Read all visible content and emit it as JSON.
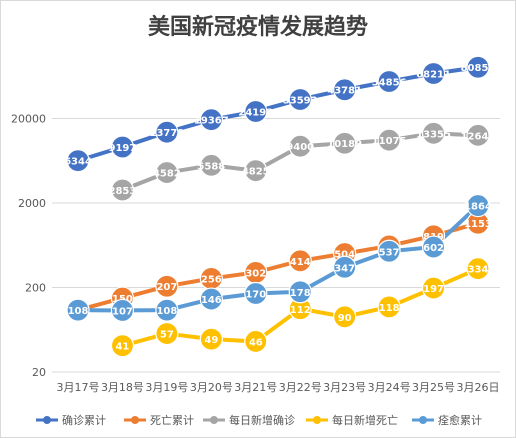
{
  "chart_data": {
    "type": "line",
    "title": "美国新冠疫情发展趋势",
    "xlabel": "",
    "ylabel": "",
    "y_scale": "log",
    "ylim": [
      20,
      200000
    ],
    "y_ticks": [
      "20",
      "200",
      "2000",
      "20000"
    ],
    "grid": true,
    "legend_position": "bottom",
    "categories": [
      "3月17号",
      "3月18号",
      "3月19号",
      "3月20号",
      "3月21号",
      "3月22号",
      "3月23号",
      "3月24号",
      "3月25号",
      "3月26日"
    ],
    "series": [
      {
        "name": "确诊累计",
        "color": "#4472C4",
        "values": [
          6344,
          9197,
          13779,
          19367,
          24192,
          33592,
          43781,
          54856,
          68211,
          80854
        ],
        "labels": [
          "6344",
          "9197",
          "13779",
          "19367",
          "24192",
          "33592",
          "43781",
          "54856",
          "68211",
          "80854"
        ]
      },
      {
        "name": "死亡累计",
        "color": "#ED7D31",
        "values": [
          108,
          150,
          207,
          256,
          302,
          414,
          504,
          622,
          819,
          1153
        ],
        "labels": [
          "108",
          "150",
          "207",
          "256",
          "302",
          "414",
          "504",
          "622",
          "819",
          "1153"
        ]
      },
      {
        "name": "每日新增确诊",
        "color": "#A5A5A5",
        "values": [
          null,
          2853,
          4582,
          5588,
          4825,
          9400,
          10189,
          11075,
          13355,
          12643
        ],
        "labels": [
          "",
          "2853",
          "4582",
          "5588",
          "4825",
          "9400",
          "10189",
          "11075",
          "13355",
          "12643"
        ]
      },
      {
        "name": "每日新增死亡",
        "color": "#FFC000",
        "values": [
          null,
          41,
          57,
          49,
          46,
          112,
          90,
          118,
          197,
          334
        ],
        "labels": [
          "",
          "41",
          "57",
          "49",
          "46",
          "112",
          "90",
          "118",
          "197",
          "334"
        ]
      },
      {
        "name": "痊愈累计",
        "color": "#5B9BD5",
        "values": [
          108,
          107,
          108,
          146,
          170,
          178,
          347,
          537,
          602,
          1864
        ],
        "labels": [
          "108",
          "107",
          "108",
          "146",
          "170",
          "178",
          "347",
          "537",
          "602",
          "1864"
        ]
      }
    ]
  }
}
